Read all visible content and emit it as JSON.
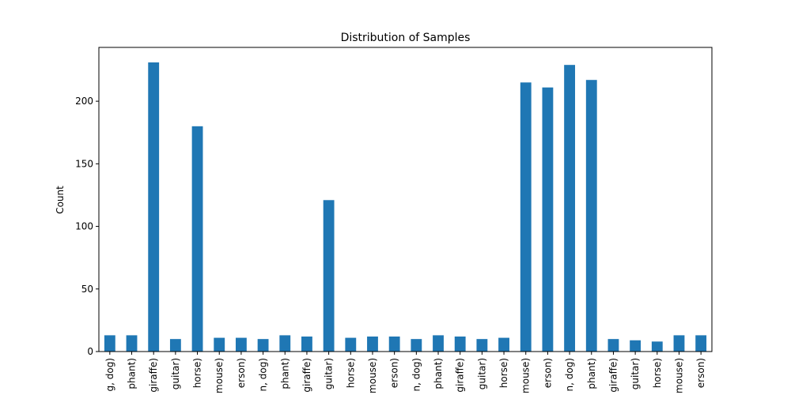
{
  "chart_data": {
    "type": "bar",
    "title": "Distribution of Samples",
    "xlabel": "",
    "ylabel": "Count",
    "ylim": [
      0,
      243
    ],
    "yticks": [
      0,
      50,
      100,
      150,
      200
    ],
    "grid": false,
    "legend": "none",
    "bar_color": "#1f77b4",
    "categories": [
      "g, dog)",
      "phant)",
      "giraffe)",
      "guitar)",
      "horse)",
      "mouse)",
      "erson)",
      "n, dog)",
      "phant)",
      "giraffe)",
      "guitar)",
      "horse)",
      "mouse)",
      "erson)",
      "n, dog)",
      "phant)",
      "giraffe)",
      "guitar)",
      "horse)",
      "mouse)",
      "erson)",
      "n, dog)",
      "phant)",
      "giraffe)",
      "guitar)",
      "horse)",
      "mouse)",
      "erson)"
    ],
    "values": [
      13,
      13,
      231,
      10,
      180,
      11,
      11,
      10,
      13,
      12,
      121,
      11,
      12,
      12,
      10,
      13,
      12,
      10,
      11,
      215,
      211,
      229,
      217,
      10,
      9,
      8,
      13,
      13
    ]
  }
}
